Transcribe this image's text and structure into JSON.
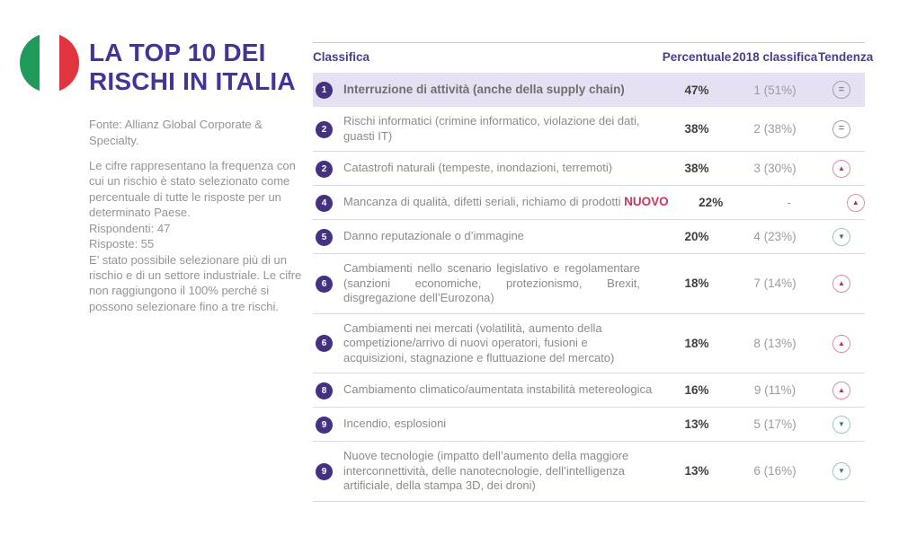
{
  "header": {
    "title_line1": "LA TOP 10 DEI",
    "title_line2": "RISCHI IN ITALIA",
    "flag": "italy"
  },
  "sidebar": {
    "source": "Fonte: Allianz Global Corporate & Specialty.",
    "methodology": "Le cifre rappresentano la frequenza con cui un rischio è stato selezionato come percentuale di tutte le risposte per un determinato Paese.",
    "respondents": "Rispondenti: 47",
    "responses": "Risposte: 55",
    "selection_note": "E’ stato possibile selezionare più di un rischio e di un settore industriale. Le cifre non raggiungono il 100% perché si possono selezionare fino a tre rischi."
  },
  "table": {
    "headers": {
      "rank": "Classifica",
      "percentage": "Percentuale",
      "previous": "2018 classifica",
      "trend": "Tendenza"
    },
    "trend_icons": {
      "up": "▲",
      "down": "▼",
      "equal": "="
    },
    "rows": [
      {
        "rank": "1",
        "text": "Interruzione di attività (anche della supply chain)",
        "percentage": "47%",
        "previous": "1 (51%)",
        "trend": "equal"
      },
      {
        "rank": "2",
        "text": "Rischi informatici (crimine informatico, violazione dei dati, guasti IT)",
        "percentage": "38%",
        "previous": "2 (38%)",
        "trend": "equal"
      },
      {
        "rank": "2",
        "text": "Catastrofi naturali (tempeste, inondazioni, terremoti)",
        "percentage": "38%",
        "previous": "3 (30%)",
        "trend": "up"
      },
      {
        "rank": "4",
        "text": "Mancanza di qualità, difetti seriali, richiamo di prodotti",
        "new_label": "NUOVO",
        "percentage": "22%",
        "previous": "-",
        "trend": "up"
      },
      {
        "rank": "5",
        "text": "Danno reputazionale o d’immagine",
        "percentage": "20%",
        "previous": "4 (23%)",
        "trend": "down"
      },
      {
        "rank": "6",
        "text": "Cambiamenti nello scenario legislativo e regolamentare (sanzioni economiche, protezionismo, Brexit, disgregazione dell’Eurozona)",
        "percentage": "18%",
        "previous": "7 (14%)",
        "trend": "up"
      },
      {
        "rank": "6",
        "text": "Cambiamenti nei mercati (volatilità, aumento della competizione/arrivo di nuovi operatori, fusioni e acquisizioni, stagnazione e fluttuazione del mercato)",
        "percentage": "18%",
        "previous": "8 (13%)",
        "trend": "up"
      },
      {
        "rank": "8",
        "text": "Cambiamento climatico/aumentata instabilità metereologica",
        "percentage": "16%",
        "previous": "9 (11%)",
        "trend": "up"
      },
      {
        "rank": "9",
        "text": "Incendio, esplosioni",
        "percentage": "13%",
        "previous": "5 (17%)",
        "trend": "down"
      },
      {
        "rank": "9",
        "text": "Nuove tecnologie (impatto dell’aumento della maggiore interconnettività, delle nanotecnologie, dell’intelligenza artificiale, della stampa 3D, dei droni)",
        "percentage": "13%",
        "previous": "6 (16%)",
        "trend": "down"
      }
    ]
  },
  "colors": {
    "accent_purple": "#46339a",
    "table_header_purple": "#453f90",
    "highlight_row_bg": "#e6e1f2",
    "badge_bg": "#453181",
    "new_label_red": "#d1345b",
    "trend_up_red": "#b73050",
    "trend_down_green": "#2e7d6b",
    "flag_green": "#1f9a58",
    "flag_red": "#e0343f",
    "body_gray": "#8b8b8b"
  }
}
